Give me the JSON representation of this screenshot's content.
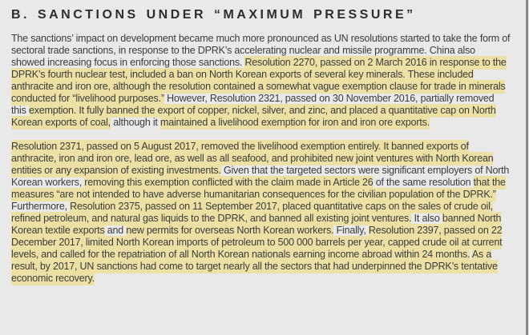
{
  "colors": {
    "background": "#e9e9e9",
    "text": "#3b3b3b",
    "title": "#2d2d2d",
    "highlight": "#ece0a4",
    "page_edge": "#8a8a8a"
  },
  "document": {
    "title": "B. SANCTIONS UNDER “MAXIMUM PRESSURE”",
    "paragraphs": [
      {
        "runs": [
          {
            "highlight": false,
            "text": "The sanctions’ impact on development became much more pronounced as UN resolutions started to take the form of sectoral trade sanctions, in response to the DPRK’s accelerating nuclear and missile programme. China also showed increasing focus in enforcing those sanctions. "
          },
          {
            "highlight": true,
            "text": "Resolution 2270, passed on 2 March 2016 in response to the DPRK’s fourth nuclear test, included a ban on North Korean exports of several key minerals. These included anthracite and iron ore, although the resolution contained a somewhat vague exemption clause for trade in minerals conducted for “livelihood purposes.”"
          },
          {
            "highlight": false,
            "text": " However, Resolution 2321, passed on 30 November 2016, partially removed this "
          },
          {
            "highlight": true,
            "text": "exemption. It fully banned the export of copper, nickel, silver, and zinc, and placed a quantitative cap on North Korean exports of coal,"
          },
          {
            "highlight": false,
            "text": " although it "
          },
          {
            "highlight": true,
            "text": "maintained a livelihood exemption for iron and iron ore exports."
          }
        ]
      },
      {
        "runs": [
          {
            "highlight": true,
            "text": "Resolution 2371, passed on 5 August 2017, removed the livelihood exemption entirely. It banned exports of anthracite, iron and iron ore, lead ore, as well as all seafood, and prohibited new joint ventures with North Korean entities or any expansion of existing investments."
          },
          {
            "highlight": false,
            "text": " Given that the targeted sectors were significant employers of North Korean workers, "
          },
          {
            "highlight": true,
            "text": "removing this exemption conflicted with the claim made in Article 26"
          },
          {
            "highlight": false,
            "text": " of the same resolution "
          },
          {
            "highlight": true,
            "text": "that the measures “are not intended to have adverse humanitarian consequences for the civilian population of the DPRK.”"
          },
          {
            "highlight": false,
            "text": " Furthermore, "
          },
          {
            "highlight": true,
            "text": "Resolution 2375, passed on 11 September 2017, placed quantitative caps on the sales of crude oil, refined petroleum, and natural gas liquids to the DPRK, and banned all existing joint ventures."
          },
          {
            "highlight": false,
            "text": " It also "
          },
          {
            "highlight": true,
            "text": "banned North Korean textile exports"
          },
          {
            "highlight": false,
            "text": " and "
          },
          {
            "highlight": true,
            "text": "new permits for overseas North Korean workers."
          },
          {
            "highlight": false,
            "text": " Finally, "
          },
          {
            "highlight": true,
            "text": "Resolution 2397, passed on 22 December 2017, limited North Korean imports of petroleum to 500 000 barrels per year, capped crude oil at current levels, and called for the repatriation of all North Korean nationals earning income abroad within 24 months."
          },
          {
            "highlight": false,
            "text": " "
          },
          {
            "highlight": true,
            "text": "As a result, by 2017, UN sanctions had come to target nearly all the sectors that had underpinned the DPRK’s tentative economic recovery."
          }
        ]
      }
    ]
  }
}
